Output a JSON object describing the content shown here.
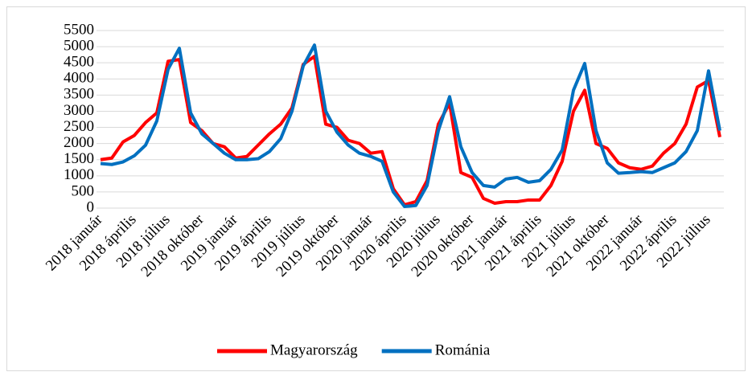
{
  "chart_data": {
    "type": "line",
    "categories": [
      "2018 január",
      null,
      null,
      "2018 április",
      null,
      null,
      "2018 július",
      null,
      null,
      "2018 október",
      null,
      null,
      "2019 január",
      null,
      null,
      "2019 április",
      null,
      null,
      "2019 július",
      null,
      null,
      "2019 október",
      null,
      null,
      "2020 január",
      null,
      null,
      "2020 április",
      null,
      null,
      "2020 július",
      null,
      null,
      "2020 október",
      null,
      null,
      "2021 január",
      null,
      null,
      "2021 április",
      null,
      null,
      "2021 július",
      null,
      null,
      "2021 október",
      null,
      null,
      "2022 január",
      null,
      null,
      "2022 április",
      null,
      null,
      "2022 július",
      null
    ],
    "series": [
      {
        "name": "Magyarország",
        "color": "#ff0000",
        "values": [
          1500,
          1550,
          2050,
          2250,
          2650,
          2950,
          4550,
          4600,
          2650,
          2400,
          2000,
          1900,
          1550,
          1600,
          1950,
          2300,
          2600,
          3100,
          4450,
          4700,
          2600,
          2500,
          2100,
          2000,
          1700,
          1750,
          600,
          100,
          200,
          850,
          2600,
          3250,
          1100,
          950,
          300,
          150,
          200,
          200,
          250,
          250,
          700,
          1450,
          3000,
          3650,
          2000,
          1850,
          1400,
          1250,
          1200,
          1300,
          1700,
          2000,
          2600,
          3750,
          3950,
          2200
        ]
      },
      {
        "name": "Románia",
        "color": "#0070c0",
        "values": [
          1380,
          1350,
          1430,
          1620,
          1950,
          2700,
          4300,
          4950,
          2950,
          2300,
          2000,
          1700,
          1500,
          1500,
          1530,
          1750,
          2150,
          3000,
          4400,
          5050,
          3000,
          2350,
          1950,
          1700,
          1600,
          1450,
          500,
          50,
          80,
          700,
          2400,
          3450,
          1900,
          1100,
          700,
          650,
          900,
          950,
          800,
          850,
          1200,
          1800,
          3650,
          4480,
          2400,
          1400,
          1080,
          1100,
          1130,
          1100,
          1250,
          1400,
          1750,
          2400,
          4250,
          2400
        ]
      }
    ],
    "ylim": [
      0,
      5500
    ],
    "yticks": [
      0,
      500,
      1000,
      1500,
      2000,
      2500,
      3000,
      3500,
      4000,
      4500,
      5000,
      5500
    ],
    "grid": true,
    "legend": "bottom"
  }
}
